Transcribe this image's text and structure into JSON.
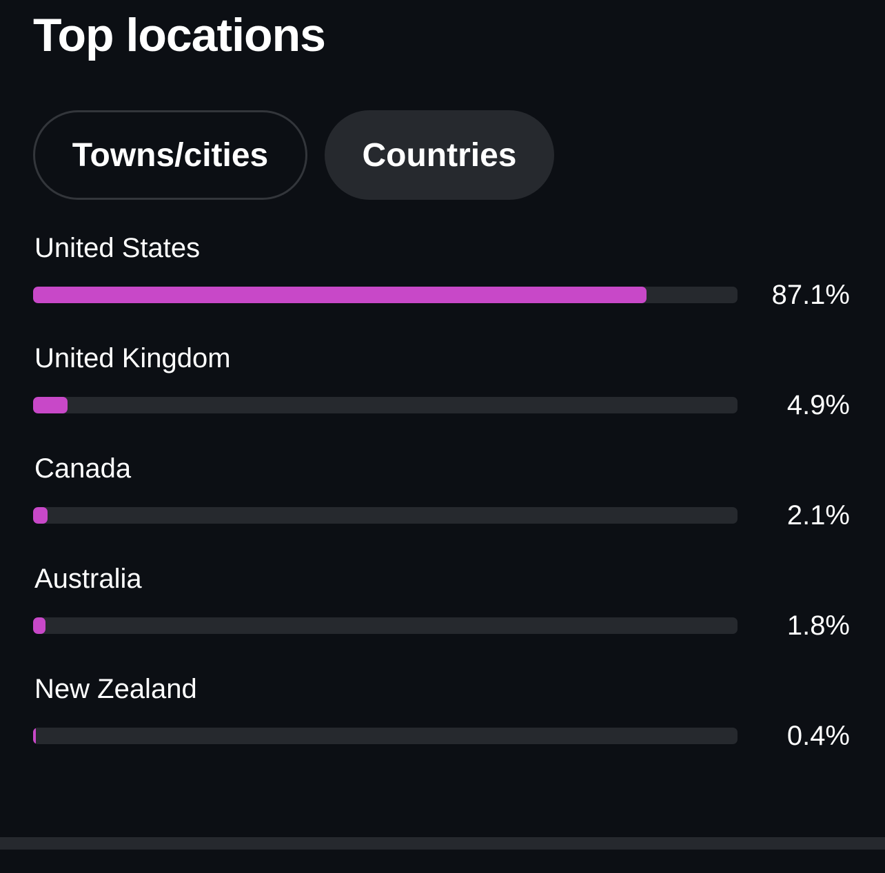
{
  "title": "Top locations",
  "tabs": [
    {
      "label": "Towns/cities",
      "selected": false
    },
    {
      "label": "Countries",
      "selected": true
    }
  ],
  "colors": {
    "background": "#0c0f14",
    "bar_fill": "#c848c8",
    "bar_track": "#26292e"
  },
  "locations": [
    {
      "name": "United States",
      "percent_label": "87.1%",
      "value": 87.1
    },
    {
      "name": "United Kingdom",
      "percent_label": "4.9%",
      "value": 4.9
    },
    {
      "name": "Canada",
      "percent_label": "2.1%",
      "value": 2.1
    },
    {
      "name": "Australia",
      "percent_label": "1.8%",
      "value": 1.8
    },
    {
      "name": "New Zealand",
      "percent_label": "0.4%",
      "value": 0.4
    }
  ]
}
